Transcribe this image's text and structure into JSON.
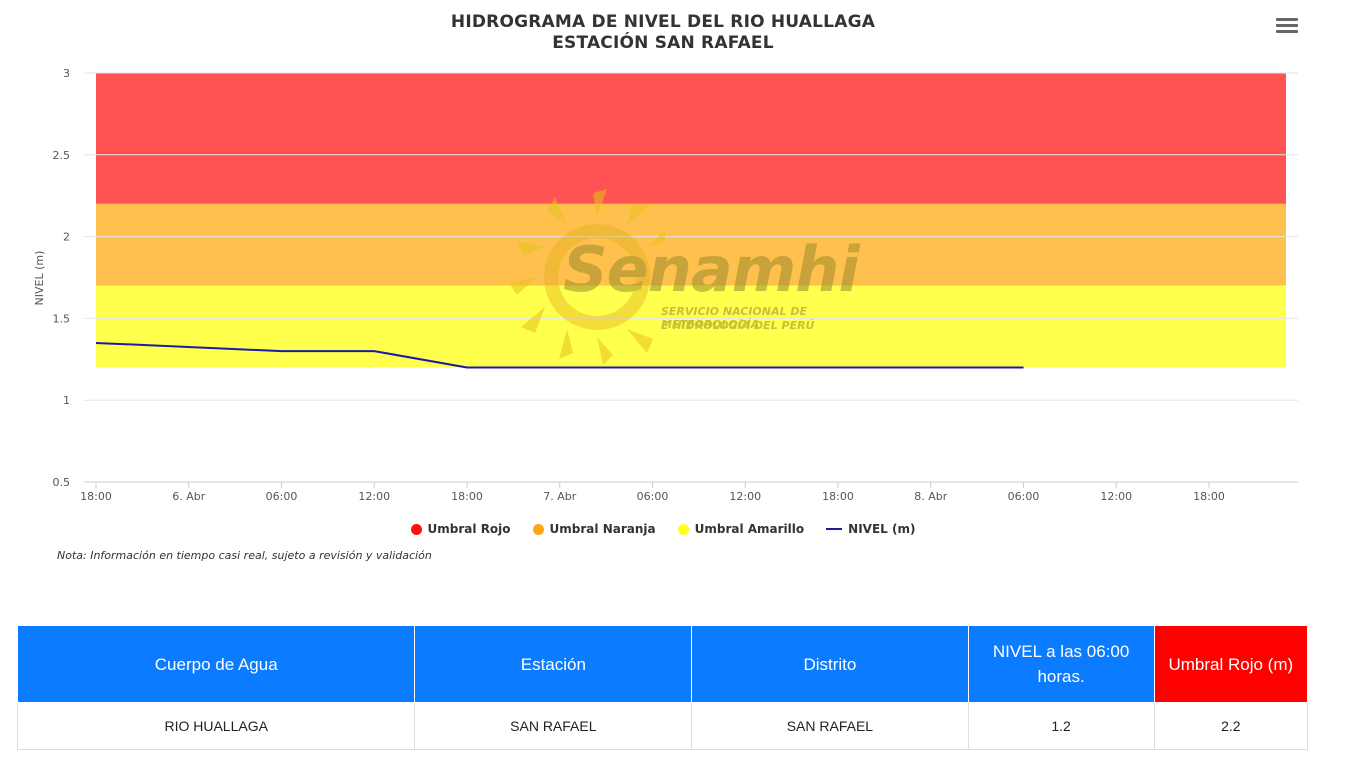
{
  "header": {
    "title_line1": "HIDROGRAMA DE NIVEL DEL RIO HUALLAGA",
    "title_line2": "ESTACIÓN SAN RAFAEL"
  },
  "menu": {
    "icon": "hamburger-menu-icon"
  },
  "chart_data": {
    "type": "line",
    "title": "HIDROGRAMA DE NIVEL DEL RIO HUALLAGA ESTACIÓN SAN RAFAEL",
    "ylabel": "NIVEL (m)",
    "ylim": [
      0.5,
      3
    ],
    "yticks": [
      "0.5",
      "1",
      "1.5",
      "2",
      "2.5",
      "3"
    ],
    "xticks": [
      "18:00",
      "6. Abr",
      "06:00",
      "12:00",
      "18:00",
      "7. Abr",
      "06:00",
      "12:00",
      "18:00",
      "8. Abr",
      "06:00",
      "12:00",
      "18:00"
    ],
    "grid": true,
    "legend_placement": "bottom-center",
    "bands": [
      {
        "name": "Umbral Rojo",
        "from": 2.2,
        "to": 3.0,
        "color": "#ff5252"
      },
      {
        "name": "Umbral Naranja",
        "from": 1.7,
        "to": 2.2,
        "color": "#ffc04d"
      },
      {
        "name": "Umbral Amarillo",
        "from": 1.2,
        "to": 1.7,
        "color": "#ffff4d"
      }
    ],
    "series": [
      {
        "name": "NIVEL (m)",
        "color": "#1a1aa6",
        "x": [
          "05 Abr 18:00",
          "06 Abr 06:00",
          "06 Abr 12:00",
          "06 Abr 18:00",
          "07 Abr 00:00",
          "07 Abr 06:00",
          "07 Abr 12:00",
          "07 Abr 18:00",
          "08 Abr 00:00",
          "08 Abr 06:00"
        ],
        "values": [
          1.35,
          1.3,
          1.3,
          1.2,
          1.2,
          1.2,
          1.2,
          1.2,
          1.2,
          1.2
        ]
      }
    ]
  },
  "legend": {
    "items": [
      {
        "label": "Umbral Rojo",
        "color": "#ff0000"
      },
      {
        "label": "Umbral Naranja",
        "color": "#ffa500"
      },
      {
        "label": "Umbral Amarillo",
        "color": "#ffff00"
      },
      {
        "label": "NIVEL (m)",
        "color": "#1a1aa6"
      }
    ]
  },
  "watermark": {
    "text": "Senamhi",
    "subtitle_line1": "SERVICIO NACIONAL DE METEOROLOGÍA",
    "subtitle_line2": "E HIDROLOGÍA DEL PERÚ"
  },
  "note": "Nota: Información en tiempo casi real, sujeto a revisión y validación",
  "table": {
    "headers": [
      "Cuerpo de Agua",
      "Estación",
      "Distrito",
      "NIVEL a las 06:00 horas.",
      "Umbral Rojo (m)"
    ],
    "row": [
      "RIO HUALLAGA",
      "SAN RAFAEL",
      "SAN RAFAEL",
      "1.2",
      "2.2"
    ],
    "header_color": "#0b7bff",
    "header_alert_color": "#ff0000"
  }
}
